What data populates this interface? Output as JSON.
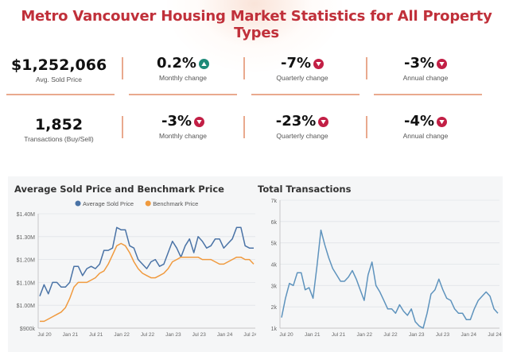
{
  "title": "Metro Vancouver Housing Market Statistics for All Property Types",
  "colors": {
    "up": "#1e8a78",
    "down": "#c21f45",
    "title": "#c0303a",
    "divider": "#e9a98e",
    "avg": "#4a73a6",
    "bench": "#f09a3e",
    "transactions": "#5e93bd"
  },
  "row1": {
    "value": "$1,252,066",
    "value_label": "Avg. Sold Price",
    "changes": [
      {
        "value": "0.2%",
        "dir": "up",
        "label": "Monthly change"
      },
      {
        "value": "-7%",
        "dir": "down",
        "label": "Quarterly change"
      },
      {
        "value": "-3%",
        "dir": "down",
        "label": "Annual change"
      }
    ]
  },
  "row2": {
    "value": "1,852",
    "value_label": "Transactions (Buy/Sell)",
    "changes": [
      {
        "value": "-3%",
        "dir": "down",
        "label": "Monthly  change"
      },
      {
        "value": "-23%",
        "dir": "down",
        "label": "Quarterly  change"
      },
      {
        "value": "-4%",
        "dir": "down",
        "label": "Annual change"
      }
    ]
  },
  "chart_data": [
    {
      "type": "line",
      "title": "Average Sold Price and Benchmark Price",
      "legend": "top",
      "x_ticks": [
        "Jul 20",
        "Jan 21",
        "Jul 21",
        "Jan 22",
        "Jul 22",
        "Jan 23",
        "Jul 23",
        "Jan 24",
        "Jul 24"
      ],
      "y_ticks": [
        "$900k",
        "$1.00M",
        "$1.10M",
        "$1.20M",
        "$1.30M",
        "$1.40M"
      ],
      "ylim": [
        900000,
        1400000
      ],
      "x_range": [
        0,
        52
      ],
      "series": [
        {
          "name": "Average Sold Price",
          "values": [
            1040000,
            1090000,
            1050000,
            1100000,
            1100000,
            1080000,
            1080000,
            1100000,
            1170000,
            1170000,
            1130000,
            1160000,
            1170000,
            1160000,
            1180000,
            1240000,
            1240000,
            1250000,
            1340000,
            1330000,
            1330000,
            1260000,
            1250000,
            1200000,
            1180000,
            1160000,
            1190000,
            1200000,
            1170000,
            1180000,
            1230000,
            1280000,
            1250000,
            1210000,
            1260000,
            1290000,
            1230000,
            1300000,
            1280000,
            1250000,
            1260000,
            1290000,
            1290000,
            1250000,
            1270000,
            1290000,
            1340000,
            1340000,
            1260000,
            1250000,
            1250000
          ]
        },
        {
          "name": "Benchmark Price",
          "values": [
            930000,
            930000,
            940000,
            950000,
            960000,
            970000,
            990000,
            1030000,
            1080000,
            1100000,
            1100000,
            1100000,
            1110000,
            1120000,
            1140000,
            1150000,
            1180000,
            1220000,
            1260000,
            1270000,
            1260000,
            1230000,
            1190000,
            1160000,
            1140000,
            1130000,
            1120000,
            1120000,
            1130000,
            1140000,
            1160000,
            1190000,
            1200000,
            1210000,
            1210000,
            1210000,
            1210000,
            1210000,
            1200000,
            1200000,
            1200000,
            1190000,
            1180000,
            1180000,
            1190000,
            1200000,
            1210000,
            1210000,
            1200000,
            1200000,
            1180000
          ]
        }
      ]
    },
    {
      "type": "line",
      "title": "Total Transactions",
      "x_ticks": [
        "Jul 20",
        "Jan 21",
        "Jul 21",
        "Jan 22",
        "Jul 22",
        "Jan 23",
        "Jul 23",
        "Jan 24",
        "Jul 24"
      ],
      "y_ticks": [
        "1k",
        "2k",
        "3k",
        "4k",
        "5k",
        "6k",
        "7k"
      ],
      "ylim": [
        1000,
        7000
      ],
      "x_range": [
        0,
        52
      ],
      "series": [
        {
          "name": "Total Transactions",
          "values": [
            1500,
            2400,
            3100,
            3000,
            3600,
            3600,
            2800,
            2900,
            2400,
            3900,
            5600,
            4900,
            4300,
            3800,
            3500,
            3200,
            3200,
            3400,
            3700,
            3300,
            2800,
            2300,
            3500,
            4100,
            3000,
            2700,
            2300,
            1900,
            1900,
            1700,
            2100,
            1800,
            1600,
            1900,
            1300,
            1100,
            1000,
            1700,
            2600,
            2800,
            3300,
            2800,
            2400,
            2300,
            1900,
            1700,
            1700,
            1400,
            1400,
            1900,
            2300,
            2500,
            2700,
            2500,
            1900,
            1700
          ]
        }
      ]
    }
  ]
}
